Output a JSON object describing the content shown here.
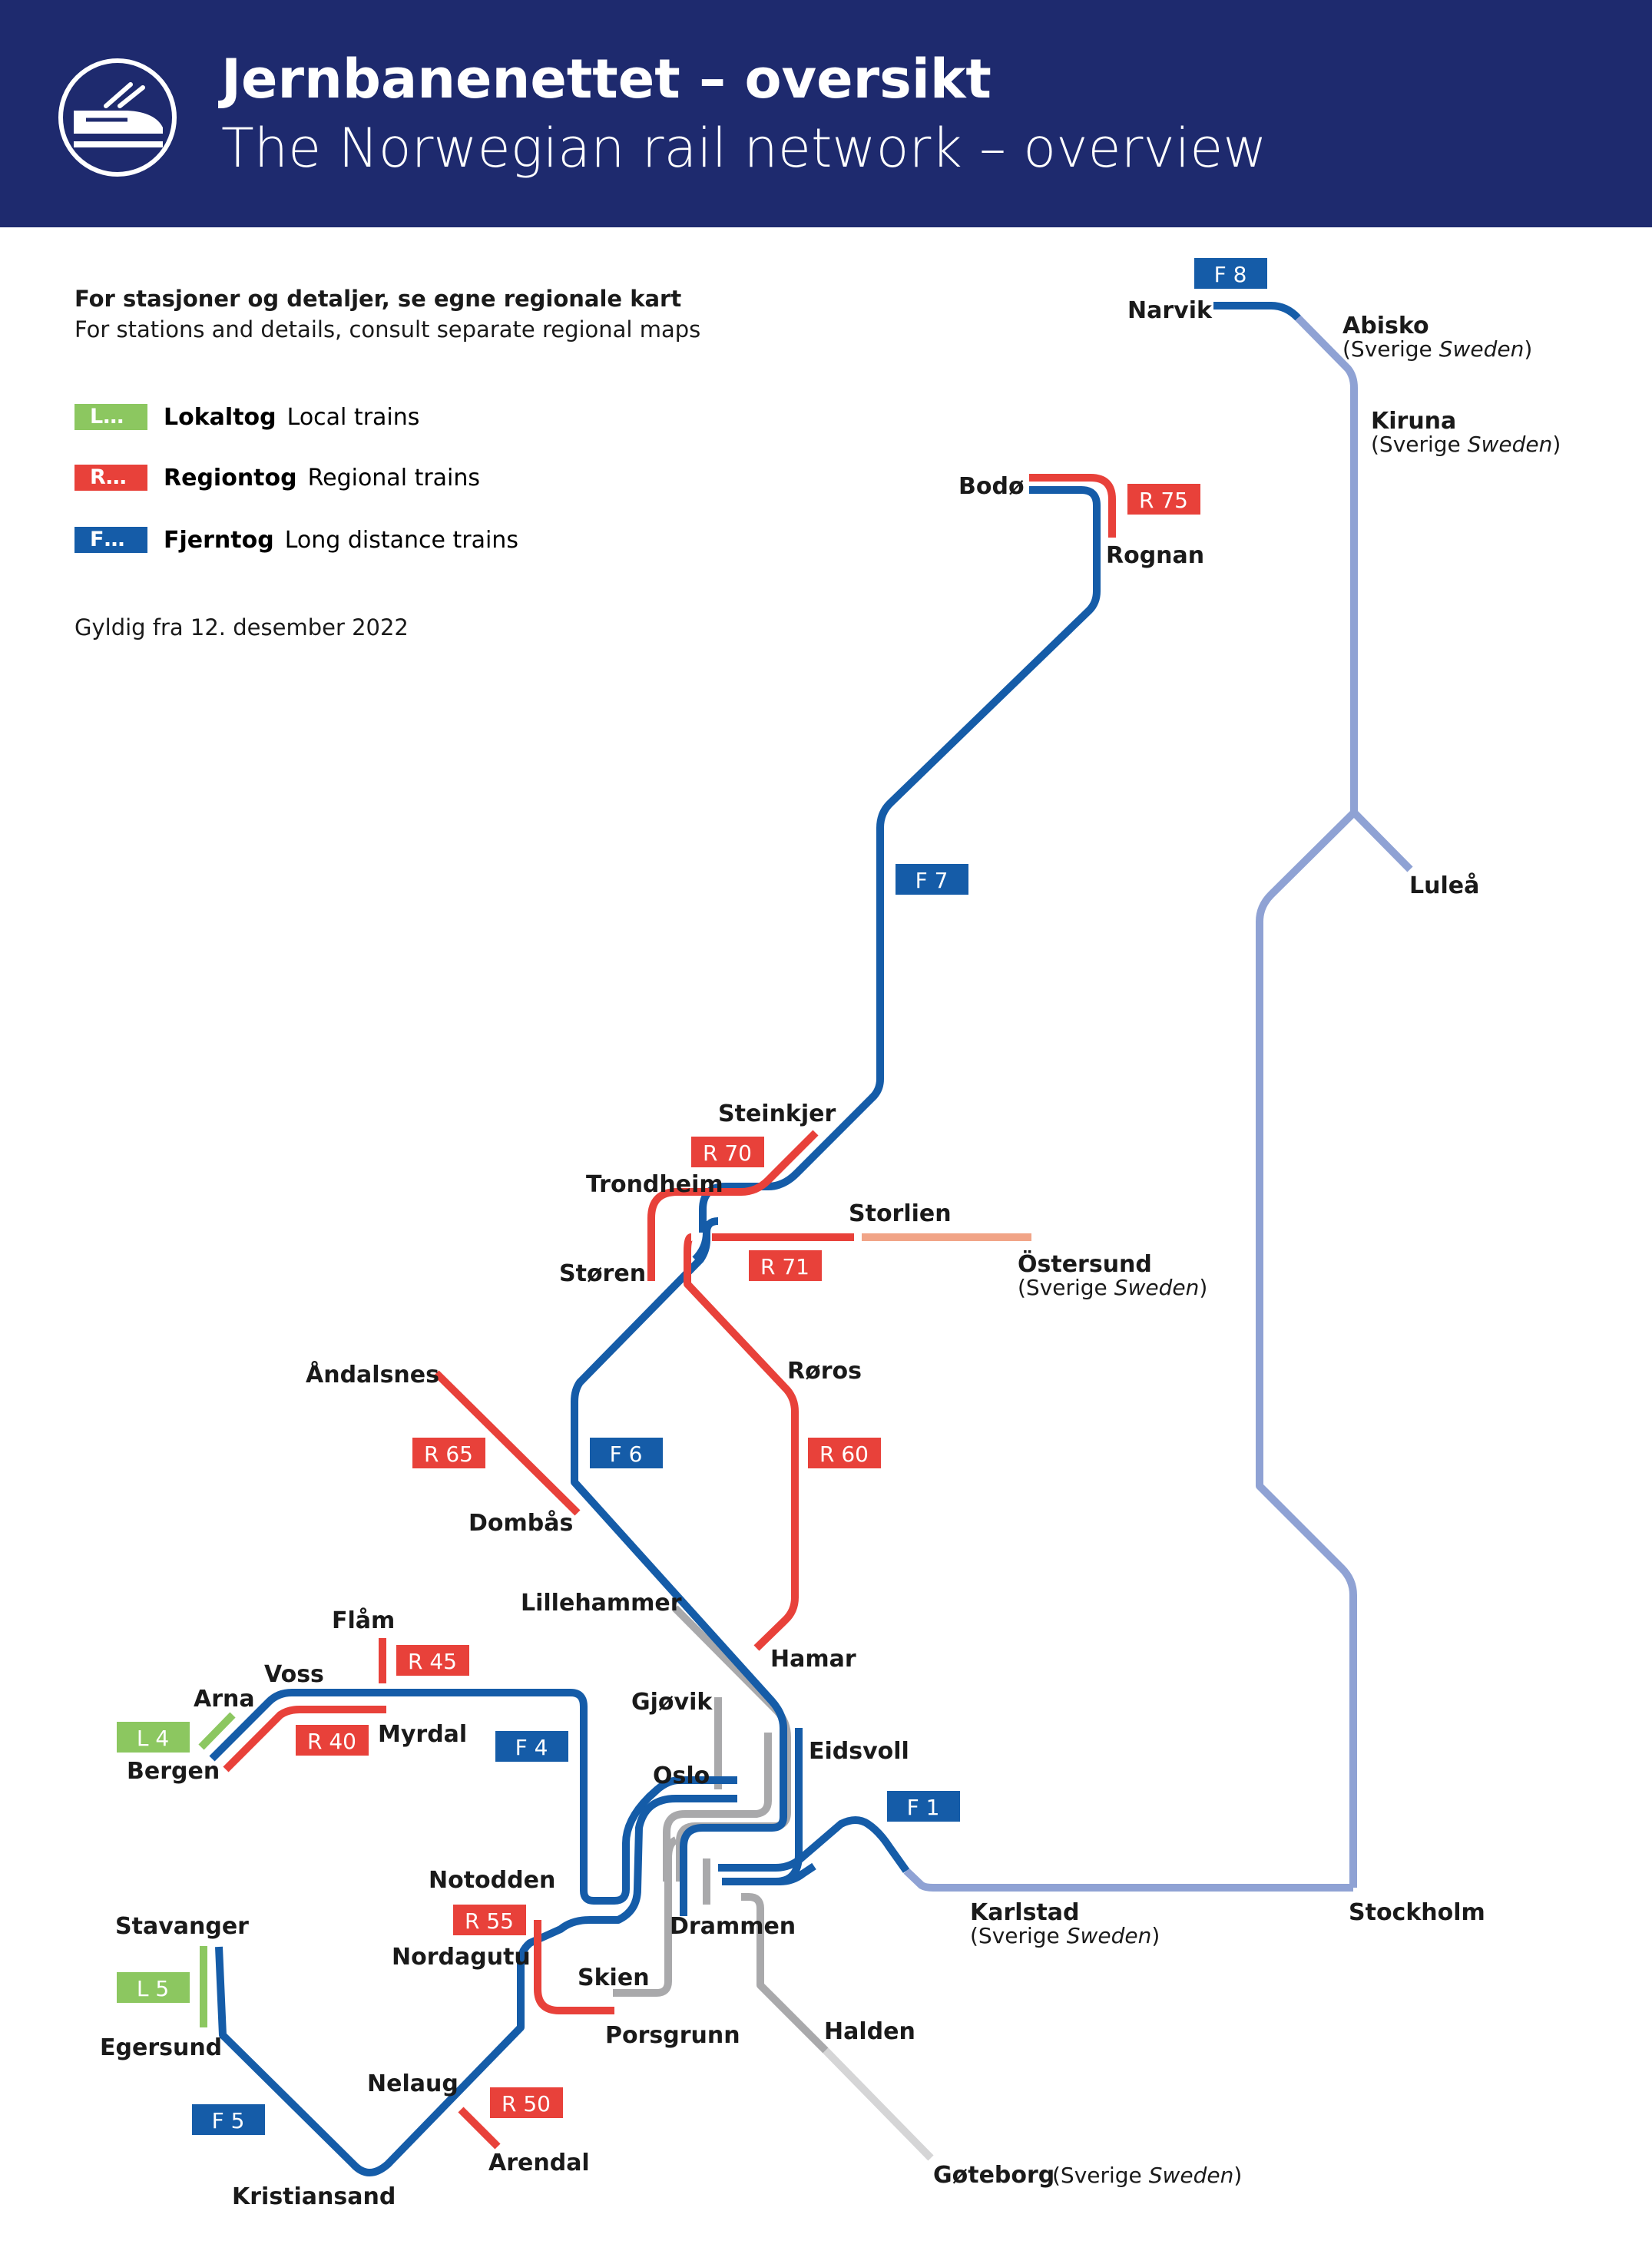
{
  "header": {
    "title_no": "Jernbanenettet – oversikt",
    "title_en": "The Norwegian rail network – overview",
    "icon": "train-icon"
  },
  "notes": {
    "line1": "For stasjoner og detaljer, se egne regionale kart",
    "line2": "For stations and details, consult separate regional maps",
    "validity": "Gyldig fra 12. desember 2022"
  },
  "legend": [
    {
      "chip": "L…",
      "label_no": "Lokaltog",
      "label_en": "Local trains",
      "color": "#8cc760"
    },
    {
      "chip": "R…",
      "label_no": "Regiontog",
      "label_en": "Regional trains",
      "color": "#e8413a"
    },
    {
      "chip": "F…",
      "label_no": "Fjerntog",
      "label_en": "Long distance trains",
      "color": "#155ca8"
    }
  ],
  "colors": {
    "long_distance": "#155ca8",
    "regional": "#e8413a",
    "local": "#8cc760",
    "sweden": "#8fa2d4",
    "other": "#a9a9ab",
    "other_light": "#d5d5d6",
    "regional_light": "#f1a487"
  },
  "route_labels": {
    "F8": "F 8",
    "F7": "F 7",
    "F6": "F 6",
    "F4": "F 4",
    "F5": "F 5",
    "F1": "F 1",
    "R75": "R 75",
    "R70": "R 70",
    "R71": "R 71",
    "R65": "R 65",
    "R60": "R 60",
    "R45": "R 45",
    "R40": "R 40",
    "R55": "R 55",
    "R50": "R 50",
    "L4": "L 4",
    "L5": "L 5"
  },
  "stations": {
    "narvik": "Narvik",
    "abisko": "Abisko",
    "kiruna": "Kiruna",
    "lulea": "Luleå",
    "bodo": "Bodø",
    "rognan": "Rognan",
    "steinkjer": "Steinkjer",
    "trondheim": "Trondheim",
    "storlien": "Storlien",
    "storen": "Støren",
    "ostersund": "Östersund",
    "roros": "Røros",
    "andalsnes": "Åndalsnes",
    "dombas": "Dombås",
    "lillehammer": "Lillehammer",
    "hamar": "Hamar",
    "flam": "Flåm",
    "voss": "Voss",
    "arna": "Arna",
    "bergen": "Bergen",
    "myrdal": "Myrdal",
    "gjovik": "Gjøvik",
    "eidsvoll": "Eidsvoll",
    "oslo": "Oslo",
    "notodden": "Notodden",
    "nordagutu": "Nordagutu",
    "drammen": "Drammen",
    "karlstad": "Karlstad",
    "stockholm": "Stockholm",
    "stavanger": "Stavanger",
    "egersund": "Egersund",
    "skien": "Skien",
    "porsgrunn": "Porsgrunn",
    "halden": "Halden",
    "nelaug": "Nelaug",
    "arendal": "Arendal",
    "kristiansand": "Kristiansand",
    "goteborg": "Gøteborg"
  },
  "sweden_note": {
    "open": "(Sverige ",
    "en": "Sweden",
    "close": ")"
  }
}
